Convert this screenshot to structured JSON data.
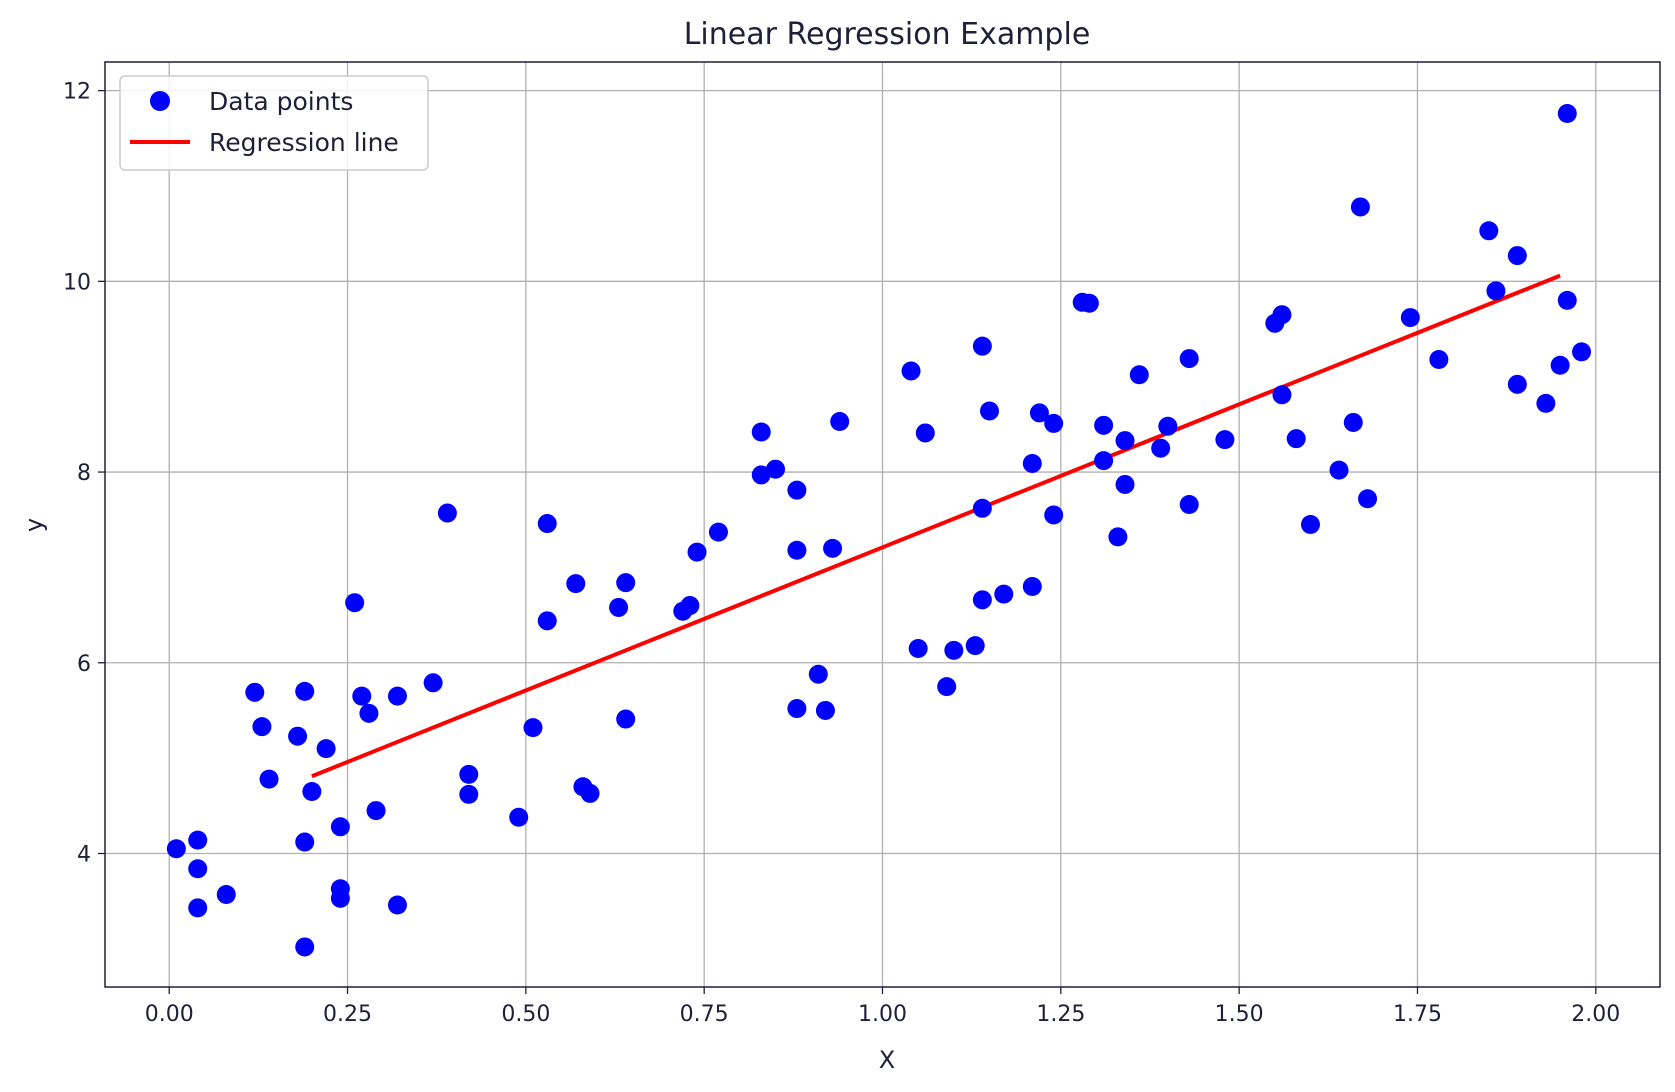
{
  "chart_data": {
    "type": "scatter",
    "title": "Linear Regression Example",
    "xlabel": "X",
    "ylabel": "y",
    "xlim": [
      -0.09,
      2.09
    ],
    "ylim": [
      2.6,
      12.3
    ],
    "xticks": [
      0.0,
      0.25,
      0.5,
      0.75,
      1.0,
      1.25,
      1.5,
      1.75,
      2.0
    ],
    "xtick_labels": [
      "0.00",
      "0.25",
      "0.50",
      "0.75",
      "1.00",
      "1.25",
      "1.50",
      "1.75",
      "2.00"
    ],
    "yticks": [
      4,
      6,
      8,
      10,
      12
    ],
    "ytick_labels": [
      "4",
      "6",
      "8",
      "10",
      "12"
    ],
    "grid": true,
    "legend_position": "top-left",
    "series": [
      {
        "name": "Data points",
        "kind": "scatter",
        "color": "#0000ff",
        "points": [
          [
            0.01,
            4.05
          ],
          [
            0.04,
            3.84
          ],
          [
            0.04,
            4.14
          ],
          [
            0.04,
            3.43
          ],
          [
            0.08,
            3.57
          ],
          [
            0.12,
            5.69
          ],
          [
            0.13,
            5.33
          ],
          [
            0.14,
            4.78
          ],
          [
            0.18,
            5.23
          ],
          [
            0.19,
            3.02
          ],
          [
            0.19,
            4.12
          ],
          [
            0.19,
            5.7
          ],
          [
            0.2,
            4.65
          ],
          [
            0.22,
            5.1
          ],
          [
            0.24,
            4.28
          ],
          [
            0.24,
            3.53
          ],
          [
            0.24,
            3.63
          ],
          [
            0.26,
            6.63
          ],
          [
            0.27,
            5.65
          ],
          [
            0.28,
            5.47
          ],
          [
            0.29,
            4.45
          ],
          [
            0.32,
            3.46
          ],
          [
            0.32,
            5.65
          ],
          [
            0.37,
            5.79
          ],
          [
            0.39,
            7.57
          ],
          [
            0.42,
            4.62
          ],
          [
            0.42,
            4.83
          ],
          [
            0.49,
            4.38
          ],
          [
            0.51,
            5.32
          ],
          [
            0.53,
            7.46
          ],
          [
            0.53,
            6.44
          ],
          [
            0.57,
            6.83
          ],
          [
            0.58,
            4.7
          ],
          [
            0.59,
            4.63
          ],
          [
            0.63,
            6.58
          ],
          [
            0.64,
            6.84
          ],
          [
            0.64,
            5.41
          ],
          [
            0.72,
            6.54
          ],
          [
            0.73,
            6.6
          ],
          [
            0.74,
            7.16
          ],
          [
            0.77,
            7.37
          ],
          [
            0.83,
            8.42
          ],
          [
            0.83,
            7.97
          ],
          [
            0.85,
            8.03
          ],
          [
            0.88,
            7.81
          ],
          [
            0.88,
            7.18
          ],
          [
            0.88,
            5.52
          ],
          [
            0.91,
            5.88
          ],
          [
            0.92,
            5.5
          ],
          [
            0.93,
            7.2
          ],
          [
            0.94,
            8.53
          ],
          [
            1.04,
            9.06
          ],
          [
            1.05,
            6.15
          ],
          [
            1.06,
            8.41
          ],
          [
            1.09,
            5.75
          ],
          [
            1.1,
            6.13
          ],
          [
            1.13,
            6.18
          ],
          [
            1.14,
            9.32
          ],
          [
            1.14,
            7.62
          ],
          [
            1.14,
            6.66
          ],
          [
            1.15,
            8.64
          ],
          [
            1.17,
            6.72
          ],
          [
            1.21,
            8.09
          ],
          [
            1.21,
            6.8
          ],
          [
            1.22,
            8.62
          ],
          [
            1.24,
            8.51
          ],
          [
            1.24,
            7.55
          ],
          [
            1.28,
            9.78
          ],
          [
            1.29,
            9.77
          ],
          [
            1.31,
            8.49
          ],
          [
            1.31,
            8.12
          ],
          [
            1.34,
            8.33
          ],
          [
            1.33,
            7.32
          ],
          [
            1.34,
            7.87
          ],
          [
            1.36,
            9.02
          ],
          [
            1.39,
            8.25
          ],
          [
            1.4,
            8.48
          ],
          [
            1.43,
            9.19
          ],
          [
            1.43,
            7.66
          ],
          [
            1.48,
            8.34
          ],
          [
            1.55,
            9.56
          ],
          [
            1.56,
            9.65
          ],
          [
            1.56,
            8.81
          ],
          [
            1.58,
            8.35
          ],
          [
            1.6,
            7.45
          ],
          [
            1.64,
            8.02
          ],
          [
            1.66,
            8.52
          ],
          [
            1.67,
            10.78
          ],
          [
            1.68,
            7.72
          ],
          [
            1.74,
            9.62
          ],
          [
            1.78,
            9.18
          ],
          [
            1.85,
            10.53
          ],
          [
            1.86,
            9.9
          ],
          [
            1.89,
            10.27
          ],
          [
            1.89,
            8.92
          ],
          [
            1.93,
            8.72
          ],
          [
            1.95,
            9.12
          ],
          [
            1.96,
            9.8
          ],
          [
            1.96,
            11.76
          ],
          [
            1.98,
            9.26
          ]
        ]
      },
      {
        "name": "Regression line",
        "kind": "line",
        "color": "#ff0000",
        "points": [
          [
            0.2,
            4.81
          ],
          [
            1.95,
            10.06
          ]
        ]
      }
    ]
  }
}
